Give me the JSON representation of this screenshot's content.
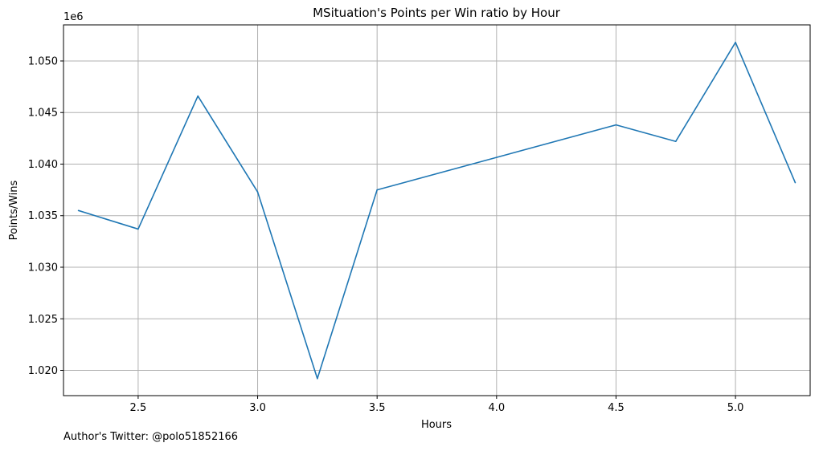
{
  "chart_data": {
    "type": "line",
    "title": "MSituation's Points per Win ratio by Hour",
    "xlabel": "Hours",
    "ylabel": "Points/Wins",
    "y_offset_label": "1e6",
    "xlim": [
      2.1875,
      5.3125
    ],
    "ylim": [
      1.01755,
      1.0535
    ],
    "x_ticks": [
      2.5,
      3.0,
      3.5,
      4.0,
      4.5,
      5.0
    ],
    "y_ticks": [
      1.02,
      1.025,
      1.03,
      1.035,
      1.04,
      1.045,
      1.05
    ],
    "grid": true,
    "line_color": "#1f77b4",
    "series": [
      {
        "x": [
          2.25,
          2.5,
          2.75,
          3.0,
          3.25,
          3.5,
          4.5,
          4.75,
          5.0,
          5.25
        ],
        "values": [
          1.0355,
          1.0337,
          1.0466,
          1.0373,
          1.0192,
          1.0375,
          1.0438,
          1.0422,
          1.0518,
          1.0382
        ]
      }
    ]
  },
  "footer": {
    "note": "Author's Twitter: @polo51852166"
  }
}
